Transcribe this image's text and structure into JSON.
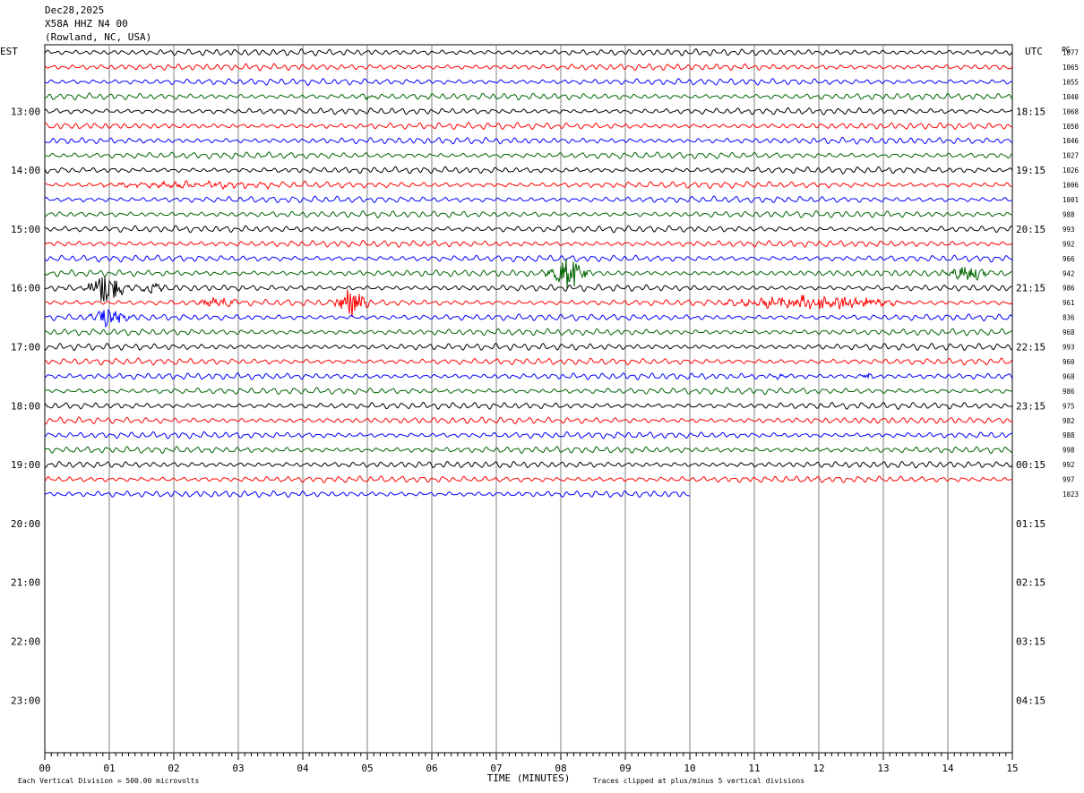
{
  "header": {
    "date": "Dec28,2025",
    "station": "X58A HHZ N4 00",
    "location": "(Rowland, NC, USA)"
  },
  "chart_data": {
    "type": "line",
    "title": "",
    "left_axis_label": "EST",
    "right_axis_label": "UTC",
    "right_col_label": "PG",
    "xlabel": "TIME (MINUTES)",
    "x_ticks": [
      "00",
      "01",
      "02",
      "03",
      "04",
      "05",
      "06",
      "07",
      "08",
      "09",
      "10",
      "11",
      "12",
      "13",
      "14",
      "15"
    ],
    "xlim": [
      0,
      15
    ],
    "left_ticks": [
      {
        "label": "13:00",
        "trace_index": 4
      },
      {
        "label": "14:00",
        "trace_index": 8
      },
      {
        "label": "15:00",
        "trace_index": 12
      },
      {
        "label": "16:00",
        "trace_index": 16
      },
      {
        "label": "17:00",
        "trace_index": 20
      },
      {
        "label": "18:00",
        "trace_index": 24
      },
      {
        "label": "19:00",
        "trace_index": 28
      },
      {
        "label": "20:00",
        "trace_index": 32
      },
      {
        "label": "21:00",
        "trace_index": 36
      },
      {
        "label": "22:00",
        "trace_index": 40
      },
      {
        "label": "23:00",
        "trace_index": 44
      }
    ],
    "right_ticks": [
      {
        "label": "18:15",
        "trace_index": 4
      },
      {
        "label": "19:15",
        "trace_index": 8
      },
      {
        "label": "20:15",
        "trace_index": 12
      },
      {
        "label": "21:15",
        "trace_index": 16
      },
      {
        "label": "22:15",
        "trace_index": 20
      },
      {
        "label": "23:15",
        "trace_index": 24
      },
      {
        "label": "00:15",
        "trace_index": 28
      },
      {
        "label": "01:15",
        "trace_index": 32
      },
      {
        "label": "02:15",
        "trace_index": 36
      },
      {
        "label": "03:15",
        "trace_index": 40
      },
      {
        "label": "04:15",
        "trace_index": 44
      }
    ],
    "trace_colors": [
      "#000000",
      "#ff0000",
      "#0000ff",
      "#006400"
    ],
    "trace_count_total": 48,
    "traces_drawn": 31,
    "last_trace_end_minute": 10,
    "trace_values": [
      "1077",
      "1065",
      "1055",
      "1040",
      "1068",
      "1050",
      "1046",
      "1027",
      "1026",
      "1006",
      "1001",
      "988",
      "993",
      "992",
      "966",
      "942",
      "986",
      "961",
      "836",
      "968",
      "993",
      "960",
      "968",
      "986",
      "975",
      "982",
      "988",
      "998",
      "992",
      "997",
      "1023"
    ],
    "events": [
      {
        "trace_index": 16,
        "start_min": 0.1,
        "end_min": 0.5,
        "amplitude": 0.4
      },
      {
        "trace_index": 16,
        "start_min": 0.55,
        "end_min": 1.35,
        "amplitude": 6
      },
      {
        "trace_index": 16,
        "start_min": 1.35,
        "end_min": 1.95,
        "amplitude": 1.3
      },
      {
        "trace_index": 17,
        "start_min": 2.2,
        "end_min": 3.2,
        "amplitude": 1.4
      },
      {
        "trace_index": 18,
        "start_min": 0.6,
        "end_min": 1.4,
        "amplitude": 3.5
      },
      {
        "trace_index": 17,
        "start_min": 4.4,
        "end_min": 5.1,
        "amplitude": 6
      },
      {
        "trace_index": 15,
        "start_min": 7.7,
        "end_min": 8.5,
        "amplitude": 6
      },
      {
        "trace_index": 17,
        "start_min": 10.0,
        "end_min": 13.9,
        "amplitude": 2.2
      },
      {
        "trace_index": 15,
        "start_min": 13.8,
        "end_min": 14.85,
        "amplitude": 2.4
      },
      {
        "trace_index": 9,
        "start_min": 0.0,
        "end_min": 4.5,
        "amplitude": 0.7
      },
      {
        "trace_index": 3,
        "start_min": 4.8,
        "end_min": 5.2,
        "amplitude": 0.8
      },
      {
        "trace_index": 22,
        "start_min": 11.2,
        "end_min": 11.6,
        "amplitude": 0.7
      },
      {
        "trace_index": 22,
        "start_min": 12.6,
        "end_min": 12.9,
        "amplitude": 0.7
      }
    ]
  },
  "footer": {
    "vertical_division": "Each Vertical Division =  500.00 microvolts",
    "clip_note": "Traces clipped at plus/minus 5 vertical divisions"
  }
}
